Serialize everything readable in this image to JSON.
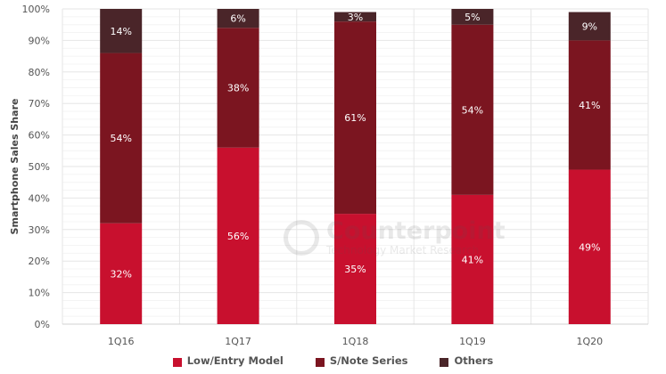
{
  "chart_data": {
    "type": "bar",
    "stacked": true,
    "categories": [
      "1Q16",
      "1Q17",
      "1Q18",
      "1Q19",
      "1Q20"
    ],
    "series": [
      {
        "name": "Low/Entry Model",
        "values": [
          32,
          56,
          35,
          41,
          49
        ],
        "labels": [
          "32%",
          "56%",
          "35%",
          "41%",
          "49%"
        ],
        "color": "#c8102e"
      },
      {
        "name": "S/Note Series",
        "values": [
          54,
          38,
          61,
          54,
          41
        ],
        "labels": [
          "54%",
          "38%",
          "61%",
          "54%",
          "41%"
        ],
        "color": "#7b1520"
      },
      {
        "name": "Others",
        "values": [
          14,
          6,
          3,
          5,
          9
        ],
        "labels": [
          "14%",
          "6%",
          "3%",
          "5%",
          "9%"
        ],
        "color": "#4a2529"
      }
    ],
    "title": "",
    "xlabel": "",
    "ylabel": "Smartphone Sales Share",
    "ylim": [
      0,
      100
    ],
    "yticks": [
      "0%",
      "10%",
      "20%",
      "30%",
      "40%",
      "50%",
      "60%",
      "70%",
      "80%",
      "90%",
      "100%"
    ],
    "grid": true,
    "legend_position": "bottom"
  },
  "watermark": {
    "name": "Counterpoint",
    "tagline": "Technology Market Research"
  }
}
